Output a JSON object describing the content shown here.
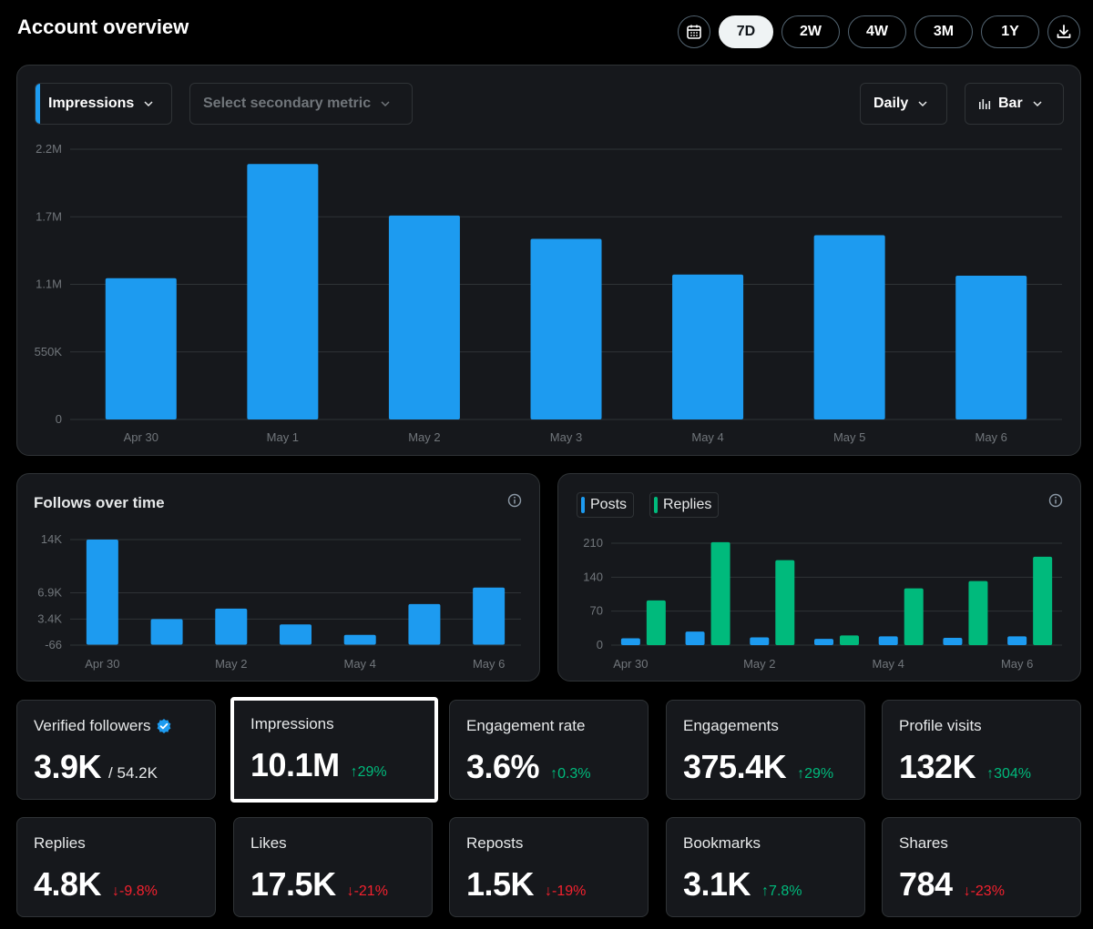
{
  "header": {
    "title": "Account overview"
  },
  "range_buttons": [
    {
      "label": "7D",
      "active": true
    },
    {
      "label": "2W",
      "active": false
    },
    {
      "label": "4W",
      "active": false
    },
    {
      "label": "3M",
      "active": false
    },
    {
      "label": "1Y",
      "active": false
    }
  ],
  "icons": {
    "calendar": "calendar-icon",
    "download": "download-icon"
  },
  "main_chart": {
    "primary_metric": "Impressions",
    "secondary_placeholder": "Select secondary metric",
    "interval": "Daily",
    "chart_type_label": "Bar"
  },
  "follows_card": {
    "title": "Follows over time"
  },
  "posts_card": {
    "legend_posts": "Posts",
    "legend_replies": "Replies"
  },
  "colors": {
    "blue": "#1d9bf0",
    "green": "#00ba7c",
    "red": "#f4212e",
    "card": "#16181c"
  },
  "metrics": [
    {
      "label": "Verified followers",
      "value": "3.9K",
      "sub": "/ 54.2K",
      "delta": "",
      "dir": ""
    },
    {
      "label": "Impressions",
      "value": "10.1M",
      "sub": "",
      "delta": "↑29%",
      "dir": "up",
      "selected": true
    },
    {
      "label": "Engagement rate",
      "value": "3.6%",
      "sub": "",
      "delta": "↑0.3%",
      "dir": "up"
    },
    {
      "label": "Engagements",
      "value": "375.4K",
      "sub": "",
      "delta": "↑29%",
      "dir": "up"
    },
    {
      "label": "Profile visits",
      "value": "132K",
      "sub": "",
      "delta": "↑304%",
      "dir": "up"
    },
    {
      "label": "Replies",
      "value": "4.8K",
      "sub": "",
      "delta": "↓-9.8%",
      "dir": "down"
    },
    {
      "label": "Likes",
      "value": "17.5K",
      "sub": "",
      "delta": "↓-21%",
      "dir": "down"
    },
    {
      "label": "Reposts",
      "value": "1.5K",
      "sub": "",
      "delta": "↓-19%",
      "dir": "down"
    },
    {
      "label": "Bookmarks",
      "value": "3.1K",
      "sub": "",
      "delta": "↑7.8%",
      "dir": "up"
    },
    {
      "label": "Shares",
      "value": "784",
      "sub": "",
      "delta": "↓-23%",
      "dir": "down"
    }
  ],
  "chart_data": [
    {
      "type": "bar",
      "categories": [
        "Apr 30",
        "May 1",
        "May 2",
        "May 3",
        "May 4",
        "May 5",
        "May 6"
      ],
      "series": [
        {
          "name": "Impressions",
          "values": [
            1150000,
            2080000,
            1660000,
            1470000,
            1180000,
            1500000,
            1170000
          ]
        }
      ],
      "yticks": [
        "0",
        "550K",
        "1.1M",
        "1.7M",
        "2.2M"
      ],
      "ytick_values": [
        0,
        550000,
        1100000,
        1650000,
        2200000
      ],
      "ylim": [
        0,
        2200000
      ],
      "grid": true
    },
    {
      "type": "bar",
      "title": "Follows over time",
      "categories": [
        "Apr 30",
        "May 1",
        "May 2",
        "May 3",
        "May 4",
        "May 5",
        "May 6"
      ],
      "xtick_labels": [
        "Apr 30",
        "",
        "May 2",
        "",
        "May 4",
        "",
        "May 6"
      ],
      "series": [
        {
          "values": [
            14000,
            3400,
            4800,
            2700,
            1300,
            5400,
            7600
          ]
        }
      ],
      "yticks": [
        "-66",
        "3.4K",
        "6.9K",
        "14K"
      ],
      "ytick_values": [
        -66,
        3400,
        6900,
        14000
      ],
      "ylim": [
        -66,
        14000
      ],
      "grid": true
    },
    {
      "type": "bar",
      "categories": [
        "Apr 30",
        "May 1",
        "May 2",
        "May 3",
        "May 4",
        "May 5",
        "May 6"
      ],
      "xtick_labels": [
        "Apr 30",
        "",
        "May 2",
        "",
        "May 4",
        "",
        "May 6"
      ],
      "series": [
        {
          "name": "Posts",
          "values": [
            14,
            28,
            16,
            13,
            18,
            15,
            18
          ]
        },
        {
          "name": "Replies",
          "values": [
            92,
            212,
            175,
            20,
            117,
            132,
            182
          ]
        }
      ],
      "yticks": [
        "0",
        "70",
        "140",
        "210"
      ],
      "ytick_values": [
        0,
        70,
        140,
        210
      ],
      "ylim": [
        0,
        210
      ],
      "legend": "top-left",
      "grid": true
    }
  ]
}
